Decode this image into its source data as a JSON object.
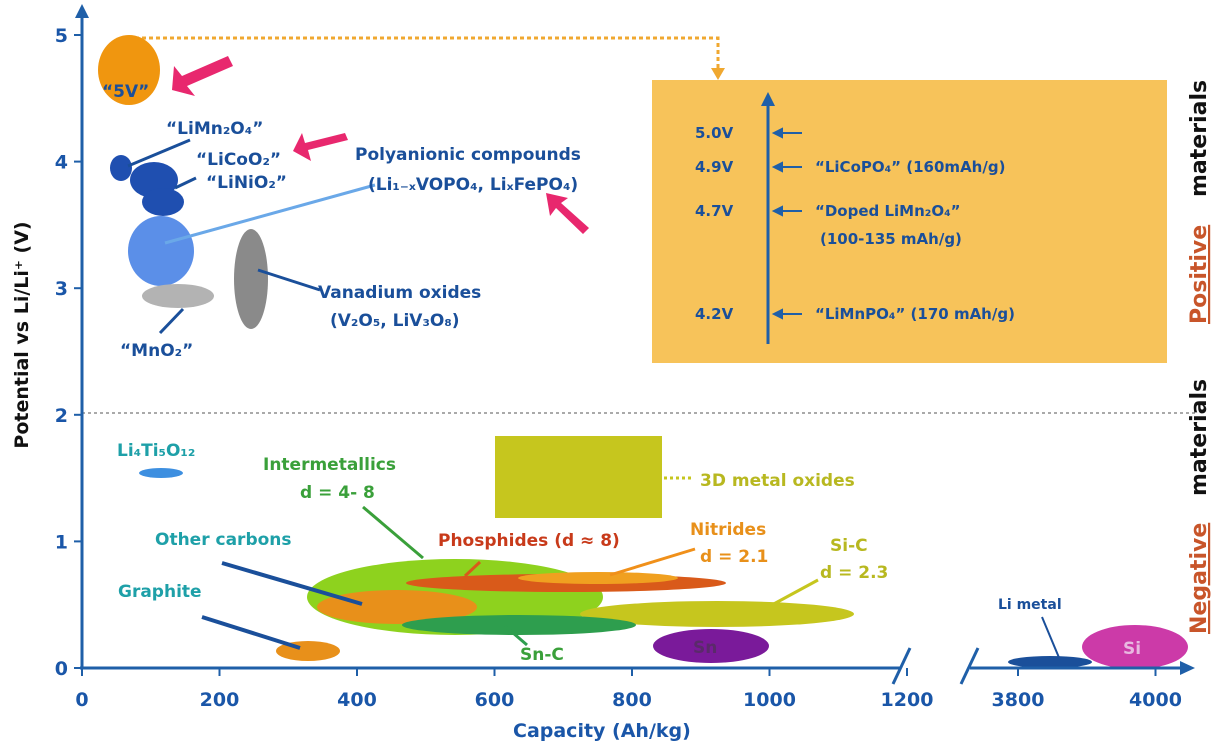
{
  "chart_data": {
    "type": "scatter",
    "xlabel": "Capacity (Ah/kg)",
    "ylabel": "Potential vs Li/Li⁺ (V)",
    "xlim": [
      0,
      1200
    ],
    "ylim": [
      0,
      5
    ],
    "xticks": [
      "0",
      "200",
      "400",
      "600",
      "800",
      "1000",
      "1200"
    ],
    "xticks_break": [
      "3800",
      "4000"
    ],
    "yticks": [
      "0",
      "1",
      "2",
      "3",
      "4",
      "5"
    ],
    "divider_v": 2.0,
    "side_labels": {
      "positive_a": "Positive",
      "positive_b": "materials",
      "negative_a": "Negative",
      "negative_b": "materials"
    },
    "regions": [
      {
        "key": "v5",
        "label": "“5V”",
        "x": 70,
        "v": 4.8,
        "color": "#f0960f"
      },
      {
        "key": "limn",
        "label": "“LiMn₂O₄”",
        "x": 60,
        "v": 3.98,
        "color": "#1f4fb0"
      },
      {
        "key": "licoo",
        "label": "“LiCoO₂”",
        "x": 90,
        "v": 3.9,
        "color": "#1f4fb0"
      },
      {
        "key": "linio",
        "label": "“LiNiO₂”",
        "x": 120,
        "v": 3.68,
        "color": "#1f4fb0"
      },
      {
        "key": "poly",
        "label": "Polyanionic compounds",
        "label2": "(Li₁₋ₓVOPO₄, LiₓFePO₄)",
        "x": 120,
        "v": 3.3,
        "color": "#5b8fe8"
      },
      {
        "key": "mno2",
        "label": "“MnO₂”",
        "x": 140,
        "v": 2.95,
        "color": "#b3b3b3"
      },
      {
        "key": "vox",
        "label": "Vanadium oxides",
        "label2": "(V₂O₅, LiV₃O₈)",
        "x": 250,
        "v": 3.0,
        "color": "#8a8a8a"
      },
      {
        "key": "lto",
        "label": "Li₄Ti₅O₁₂",
        "x": 120,
        "v": 1.55,
        "color": "#3d8fe0"
      },
      {
        "key": "graphite",
        "label": "Graphite",
        "x": 330,
        "v": 0.12,
        "color": "#e8901a"
      },
      {
        "key": "carbons",
        "label": "Other carbons",
        "x": 380,
        "v": 0.5,
        "color": "#e8901a"
      },
      {
        "key": "intermetallics",
        "label": "Intermetallics",
        "label2": "d = 4- 8",
        "x": 550,
        "v": 0.58,
        "color": "#8ed21e"
      },
      {
        "key": "phosphides",
        "label": "Phosphides (d ≈ 8)",
        "x": 680,
        "v": 0.68,
        "color": "#d95a1a"
      },
      {
        "key": "nitrides",
        "label": "Nitrides",
        "label2": "d = 2.1",
        "x": 720,
        "v": 0.72,
        "color": "#f0901a"
      },
      {
        "key": "metaloxides",
        "label": "3D metal oxides",
        "x": 800,
        "v": 1.5,
        "color": "#c6c61e"
      },
      {
        "key": "sic",
        "label": "Si-C",
        "label2": "d = 2.3",
        "x": 900,
        "v": 0.42,
        "color": "#c6c61e"
      },
      {
        "key": "snc",
        "label": "Sn-C",
        "x": 650,
        "v": 0.35,
        "color": "#2e9e4e"
      },
      {
        "key": "sn",
        "label": "Sn",
        "x": 990,
        "v": 0.18,
        "color": "#7a1a9a"
      },
      {
        "key": "limetal",
        "label": "Li metal",
        "x": 3860,
        "v": 0.05,
        "color": "#1a4f9a"
      },
      {
        "key": "si",
        "label": "Si",
        "x": 4000,
        "v": 0.18,
        "color": "#cc3aa8"
      }
    ],
    "inset": [
      {
        "v": "5.0V",
        "label": ""
      },
      {
        "v": "4.9V",
        "label": "“LiCoPO₄” (160mAh/g)"
      },
      {
        "v": "4.7V",
        "label": "“Doped LiMn₂O₄”",
        "label2": "(100-135 mAh/g)"
      },
      {
        "v": "4.2V",
        "label": "“LiMnPO₄” (170 mAh/g)"
      }
    ],
    "colors": {
      "axis": "#1f5fa8",
      "tick_text": "#1a56a8",
      "inset_bg": "#f7c35a",
      "label_blue": "#1a4f9a",
      "label_teal": "#1ea0a8",
      "label_green": "#3aa03a",
      "label_olive": "#b8b820",
      "label_orange": "#e8901a",
      "label_red": "#c83a1a",
      "arrow_pink": "#e8286e",
      "side_positive": "#c8552a"
    }
  }
}
